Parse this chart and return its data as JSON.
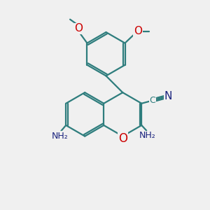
{
  "bg_color": "#f0f0f0",
  "bond_color": "#2e7d7d",
  "bond_width": 1.6,
  "atom_colors": {
    "C": "#2e7d7d",
    "N": "#1a237e",
    "O": "#cc0000"
  },
  "font_size": 10
}
